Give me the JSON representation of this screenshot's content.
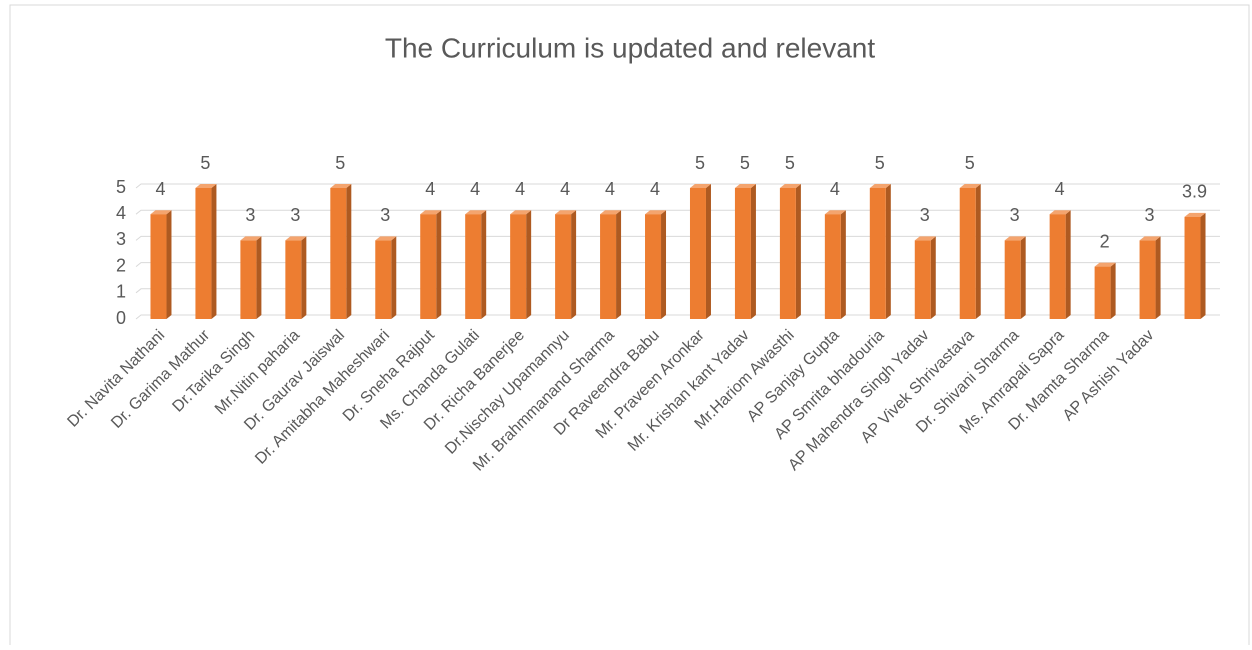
{
  "chart_data": {
    "type": "bar",
    "title": "The Curriculum is updated and relevant",
    "categories": [
      "Dr. Navita Nathani",
      "Dr. Garima Mathur",
      "Dr.Tarika Singh",
      "Mr.Nitin paharia",
      "Dr. Gaurav Jaiswal",
      "Dr. Amitabha Maheshwari",
      "Dr. Sneha Rajput",
      "Ms. Chanda Gulati",
      "Dr. Richa Banerjee",
      "Dr.Nischay Upamannyu",
      "Mr. Brahmmanand Sharma",
      "Dr Raveendra Babu",
      "Mr. Praveen Aronkar",
      "Mr. Krishan kant Yadav",
      "Mr.Hariom Awasthi",
      "AP Sanjay Gupta",
      "AP Smrita bhadouria",
      "AP Mahendra Singh Yadav",
      "AP Vivek Shrivastava",
      "Dr. Shivani Sharma",
      "Ms. Amrapali Sapra",
      "Dr. Mamta Sharma",
      "AP Ashish Yadav",
      null
    ],
    "values": [
      4,
      5,
      3,
      3,
      5,
      3,
      4,
      4,
      4,
      4,
      4,
      4,
      5,
      5,
      5,
      4,
      5,
      3,
      5,
      3,
      4,
      2,
      3,
      3.9
    ],
    "color": "#ed7d31",
    "ylim": [
      0,
      5
    ],
    "yticks": [
      0,
      1,
      2,
      3,
      4,
      5
    ],
    "grid": true
  }
}
